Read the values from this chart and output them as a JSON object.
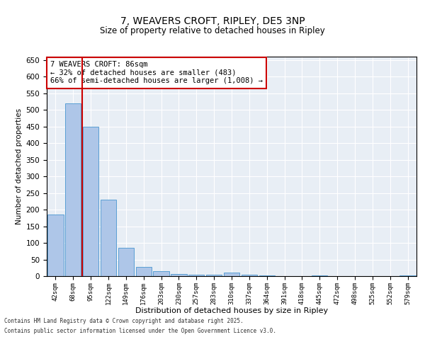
{
  "title1": "7, WEAVERS CROFT, RIPLEY, DE5 3NP",
  "title2": "Size of property relative to detached houses in Ripley",
  "xlabel": "Distribution of detached houses by size in Ripley",
  "ylabel": "Number of detached properties",
  "categories": [
    "42sqm",
    "68sqm",
    "95sqm",
    "122sqm",
    "149sqm",
    "176sqm",
    "203sqm",
    "230sqm",
    "257sqm",
    "283sqm",
    "310sqm",
    "337sqm",
    "364sqm",
    "391sqm",
    "418sqm",
    "445sqm",
    "472sqm",
    "498sqm",
    "525sqm",
    "552sqm",
    "579sqm"
  ],
  "values": [
    185,
    520,
    450,
    230,
    85,
    28,
    15,
    7,
    5,
    5,
    10,
    5,
    2,
    0,
    0,
    2,
    0,
    0,
    0,
    0,
    2
  ],
  "bar_color": "#aec6e8",
  "bar_edge_color": "#5a9fd4",
  "vline_x": 1.5,
  "vline_color": "#cc0000",
  "ylim": [
    0,
    660
  ],
  "yticks": [
    0,
    50,
    100,
    150,
    200,
    250,
    300,
    350,
    400,
    450,
    500,
    550,
    600,
    650
  ],
  "annotation_text": "7 WEAVERS CROFT: 86sqm\n← 32% of detached houses are smaller (483)\n66% of semi-detached houses are larger (1,008) →",
  "annotation_box_color": "#cc0000",
  "bg_color": "#e8eef5",
  "footer1": "Contains HM Land Registry data © Crown copyright and database right 2025.",
  "footer2": "Contains public sector information licensed under the Open Government Licence v3.0."
}
